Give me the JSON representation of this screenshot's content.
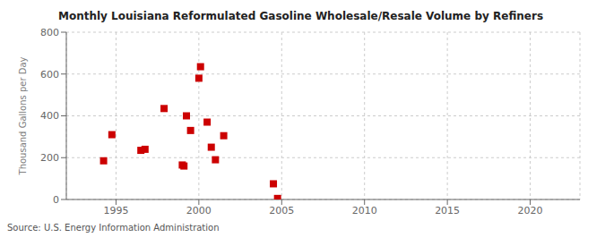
{
  "chart_data": {
    "type": "scatter",
    "title": "Monthly Louisiana Reformulated Gasoline Wholesale/Resale Volume by Refiners",
    "ylabel": "Thousand Gallons per Day",
    "source": "Source: U.S. Energy Information Administration",
    "x": [
      1994.25,
      1994.75,
      1996.5,
      1996.75,
      1997.9,
      1999.0,
      1999.1,
      1999.25,
      1999.5,
      2000.0,
      2000.1,
      2000.5,
      2000.75,
      2001.0,
      2001.5,
      2004.5,
      2004.75
    ],
    "values": [
      185,
      310,
      235,
      240,
      435,
      165,
      160,
      400,
      330,
      580,
      635,
      370,
      250,
      190,
      305,
      75,
      5
    ],
    "color": "#CC0000",
    "marker": "square",
    "xlim": [
      1992,
      2023
    ],
    "xticks": [
      1995,
      2000,
      2005,
      2010,
      2015,
      2020
    ],
    "ylim": [
      0,
      800
    ],
    "yticks": [
      0,
      200,
      400,
      600,
      800
    ],
    "grid": true
  }
}
